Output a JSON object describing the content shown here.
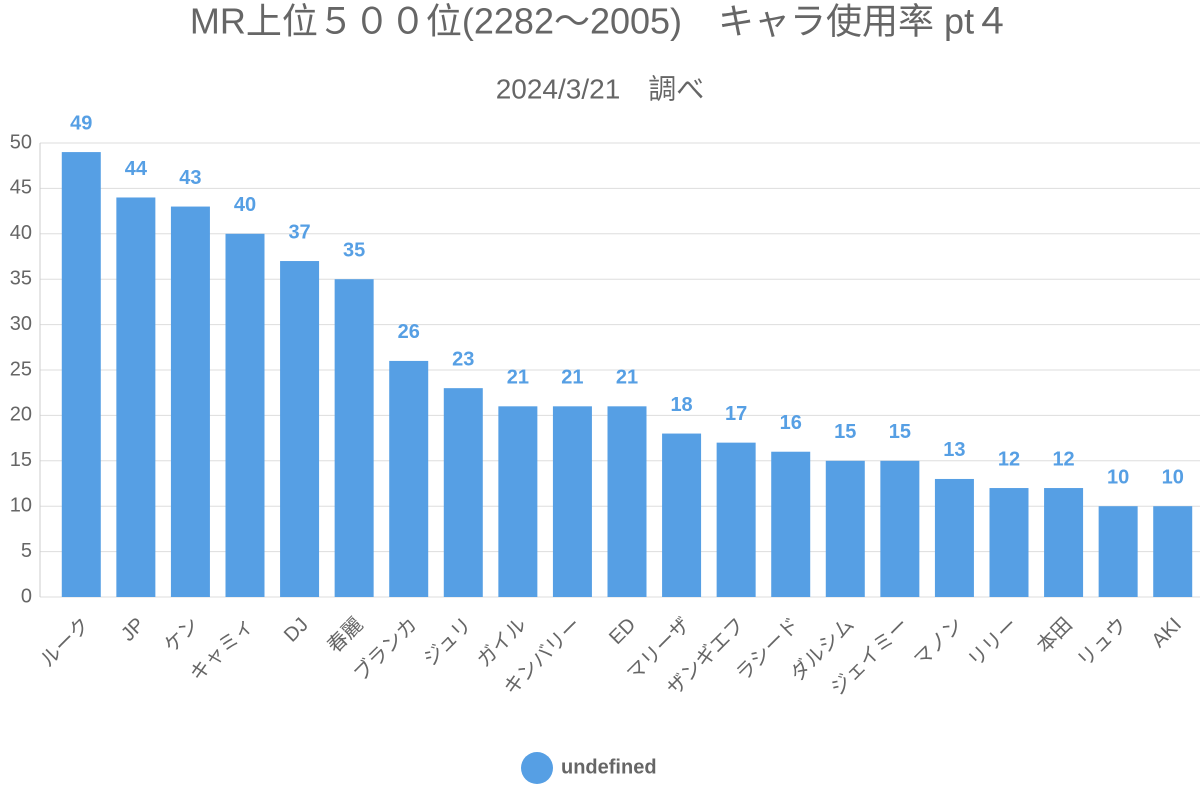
{
  "chart_data": {
    "type": "bar",
    "title": "MR上位５００位(2282～2005)　キャラ使用率 pt４",
    "subtitle": "2024/3/21　調べ",
    "categories": [
      "ルーク",
      "JP",
      "ケン",
      "キャミィ",
      "DJ",
      "春麗",
      "ブランカ",
      "ジュリ",
      "ガイル",
      "キンバリー",
      "ED",
      "マリーザ",
      "ザンギエフ",
      "ラシード",
      "ダルシム",
      "ジェイミー",
      "マノン",
      "リリー",
      "本田",
      "リュウ",
      "AKI"
    ],
    "series": [
      {
        "name": "undefined",
        "color": "#569fe4",
        "values": [
          49,
          44,
          43,
          40,
          37,
          35,
          26,
          23,
          21,
          21,
          21,
          18,
          17,
          16,
          15,
          15,
          13,
          12,
          12,
          10,
          10
        ]
      }
    ],
    "ylim": [
      0,
      50
    ],
    "yticks": [
      0,
      5,
      10,
      15,
      20,
      25,
      30,
      35,
      40,
      45,
      50
    ],
    "grid": true,
    "legend": "bottom"
  }
}
